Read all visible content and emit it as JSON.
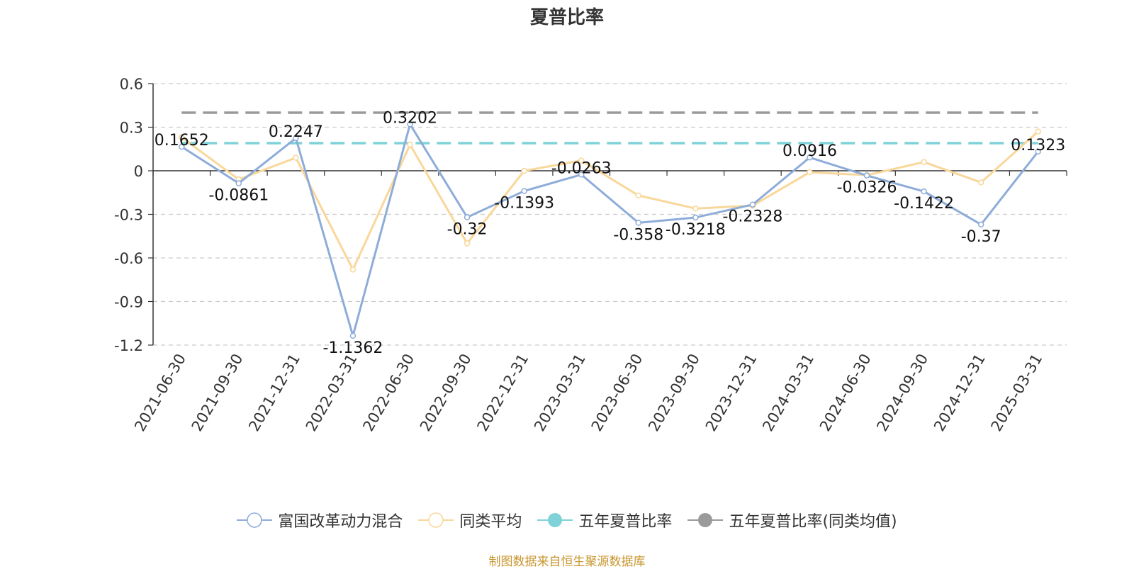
{
  "chart_data": {
    "type": "line",
    "title": "夏普比率",
    "xlabel": "",
    "ylabel": "",
    "categories": [
      "2021-06-30",
      "2021-09-30",
      "2021-12-31",
      "2022-03-31",
      "2022-06-30",
      "2022-09-30",
      "2022-12-31",
      "2023-03-31",
      "2023-06-30",
      "2023-09-30",
      "2023-12-31",
      "2024-03-31",
      "2024-06-30",
      "2024-09-30",
      "2024-12-31",
      "2025-03-31"
    ],
    "ylim": [
      -1.2,
      0.6
    ],
    "yticks": [
      0.6,
      0.3,
      0,
      -0.3,
      -0.6,
      -0.9,
      -1.2
    ],
    "grid": true,
    "legend_position": "bottom",
    "series": [
      {
        "name": "富国改革动力混合",
        "color": "#8eacd9",
        "values": [
          0.1652,
          -0.0861,
          0.2247,
          -1.1362,
          0.3202,
          -0.32,
          -0.1393,
          -0.0263,
          -0.358,
          -0.3218,
          -0.2328,
          0.0916,
          -0.0326,
          -0.1422,
          -0.37,
          0.1323
        ],
        "labels": [
          "0.1652",
          "-0.0861",
          "0.2247",
          "-1.1362",
          "0.3202",
          "-0.32",
          "-0.1393",
          "-0.0263",
          "-0.358",
          "-0.3218",
          "-0.2328",
          "0.0916",
          "-0.0326",
          "-0.1422",
          "-0.37",
          "0.1323"
        ]
      },
      {
        "name": "同类平均",
        "color": "#f9d79a",
        "values": [
          0.23,
          -0.06,
          0.09,
          -0.68,
          0.18,
          -0.5,
          0.0,
          0.07,
          -0.17,
          -0.26,
          -0.24,
          -0.01,
          -0.03,
          0.06,
          -0.08,
          0.27
        ]
      },
      {
        "name": "五年夏普比率",
        "color": "#7fd3d8",
        "constant": 0.19
      },
      {
        "name": "五年夏普比率(同类均值)",
        "color": "#9a9a9a",
        "constant": 0.4
      }
    ]
  },
  "source_note": "制图数据来自恒生聚源数据库",
  "source_color": "#c8962e"
}
